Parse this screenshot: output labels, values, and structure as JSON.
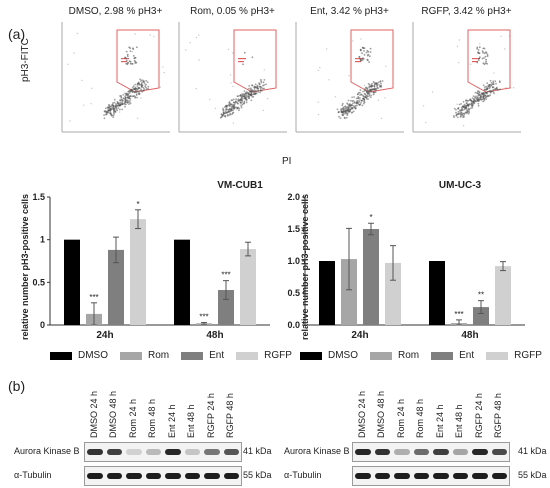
{
  "panel_a_label": "(a)",
  "panel_b_label": "(b)",
  "flow": {
    "y_axis_label": "pH3-FITC",
    "x_axis_label": "PI",
    "plots": [
      {
        "title": "DMSO, 2.98 % pH3+"
      },
      {
        "title": "Rom, 0.05 % pH3+"
      },
      {
        "title": "Ent, 3.42 % pH3+"
      },
      {
        "title": "RGFP, 3.42 % pH3+"
      }
    ]
  },
  "colors": {
    "DMSO": "#000000",
    "Rom": "#a6a6a6",
    "Ent": "#7f7f7f",
    "RGFP": "#d0d0d0",
    "gate": "#e06060"
  },
  "legend": [
    "DMSO",
    "Rom",
    "Ent",
    "RGFP"
  ],
  "chart_data": [
    {
      "type": "bar",
      "title": "VM-CUB1",
      "ylabel": "relative number pH3-positive cells",
      "ylim": [
        0,
        1.5
      ],
      "yticks": [
        "0",
        "0.5",
        "1",
        "1.5"
      ],
      "categories": [
        "24h",
        "48h"
      ],
      "series": [
        {
          "name": "DMSO",
          "values": [
            1.0,
            1.0
          ],
          "errors": [
            0,
            0
          ]
        },
        {
          "name": "Rom",
          "values": [
            0.13,
            0.02
          ],
          "errors": [
            0.13,
            0.01
          ]
        },
        {
          "name": "Ent",
          "values": [
            0.88,
            0.41
          ],
          "errors": [
            0.15,
            0.11
          ]
        },
        {
          "name": "RGFP",
          "values": [
            1.24,
            0.89
          ],
          "errors": [
            0.11,
            0.08
          ]
        }
      ],
      "significance": [
        {
          "category": "24h",
          "series": "Rom",
          "label": "***"
        },
        {
          "category": "24h",
          "series": "RGFP",
          "label": "*"
        },
        {
          "category": "48h",
          "series": "Rom",
          "label": "***"
        },
        {
          "category": "48h",
          "series": "Ent",
          "label": "***"
        }
      ]
    },
    {
      "type": "bar",
      "title": "UM-UC-3",
      "ylabel": "relative number pH3-positive cells",
      "ylim": [
        0,
        2.0
      ],
      "yticks": [
        "0.0",
        "0.5",
        "1.0",
        "1.5",
        "2.0"
      ],
      "categories": [
        "24h",
        "48h"
      ],
      "series": [
        {
          "name": "DMSO",
          "values": [
            1.0,
            1.0
          ],
          "errors": [
            0,
            0
          ]
        },
        {
          "name": "Rom",
          "values": [
            1.03,
            0.03
          ],
          "errors": [
            0.48,
            0.05
          ]
        },
        {
          "name": "Ent",
          "values": [
            1.5,
            0.28
          ],
          "errors": [
            0.09,
            0.1
          ]
        },
        {
          "name": "RGFP",
          "values": [
            0.97,
            0.92
          ],
          "errors": [
            0.27,
            0.07
          ]
        }
      ],
      "significance": [
        {
          "category": "24h",
          "series": "Ent",
          "label": "*"
        },
        {
          "category": "48h",
          "series": "Rom",
          "label": "***"
        },
        {
          "category": "48h",
          "series": "Ent",
          "label": "**"
        }
      ]
    }
  ],
  "western": {
    "lanes": [
      "DMSO 24 h",
      "DMSO 48 h",
      "Rom 24 h",
      "Rom 48 h",
      "Ent 24 h",
      "Ent 48 h",
      "RGFP 24 h",
      "RGFP 48 h"
    ],
    "rows": [
      {
        "label": "Aurora Kinase B",
        "kda": "41 kDa"
      },
      {
        "label": "α-Tubulin",
        "kda": "55 kDa"
      }
    ],
    "blots": [
      {
        "aurora": [
          0.85,
          0.8,
          0.15,
          0.25,
          0.9,
          0.2,
          0.55,
          0.7
        ]
      },
      {
        "aurora": [
          0.9,
          0.85,
          0.3,
          0.6,
          0.8,
          0.35,
          0.9,
          0.75
        ]
      }
    ]
  }
}
